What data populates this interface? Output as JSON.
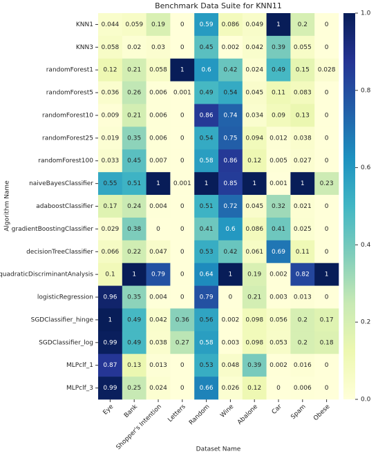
{
  "chart_data": {
    "type": "heatmap",
    "title": "Benchmark Data Suite for KNN11",
    "x_label": "Dataset Name",
    "y_label": "Algorithm Name",
    "columns": [
      "Eye",
      "Bank",
      "Shopper's Intention",
      "Letters",
      "Random",
      "Wine",
      "Abalone",
      "Car",
      "Spam",
      "Obese"
    ],
    "rows": [
      "KNN1",
      "KNN3",
      "randomForest1",
      "randomForest5",
      "randomForest10",
      "randomForest25",
      "randomForest100",
      "naiveBayesClassifier",
      "adaboostClassifier",
      "gradientBoostingClassifier",
      "decisionTreeClassifier",
      "quadraticDiscriminantAnalysis",
      "logisticRegression",
      "SGDClassifier_hinge",
      "SGDClassifier_log",
      "MLPclf_1",
      "MLPclf_3"
    ],
    "values": [
      [
        0.044,
        0.059,
        0.19,
        0,
        0.59,
        0.086,
        0.049,
        1,
        0.2,
        0
      ],
      [
        0.058,
        0.02,
        0.03,
        0,
        0.45,
        0.002,
        0.042,
        0.39,
        0.055,
        0
      ],
      [
        0.12,
        0.21,
        0.058,
        1,
        0.6,
        0.42,
        0.024,
        0.49,
        0.15,
        0.028
      ],
      [
        0.036,
        0.26,
        0.006,
        0.001,
        0.49,
        0.54,
        0.045,
        0.11,
        0.083,
        0
      ],
      [
        0.009,
        0.21,
        0.006,
        0,
        0.86,
        0.74,
        0.034,
        0.09,
        0.13,
        0
      ],
      [
        0.019,
        0.35,
        0.006,
        0,
        0.54,
        0.75,
        0.094,
        0.012,
        0.038,
        0
      ],
      [
        0.033,
        0.45,
        0.007,
        0,
        0.58,
        0.86,
        0.12,
        0.005,
        0.027,
        0
      ],
      [
        0.55,
        0.51,
        1,
        0.001,
        1,
        0.85,
        1,
        0.001,
        1,
        0.23
      ],
      [
        0.17,
        0.24,
        0.004,
        0,
        0.51,
        0.72,
        0.045,
        0.32,
        0.021,
        0
      ],
      [
        0.029,
        0.38,
        0,
        0,
        0.41,
        0.6,
        0.086,
        0.41,
        0.025,
        0
      ],
      [
        0.066,
        0.22,
        0.047,
        0,
        0.53,
        0.42,
        0.061,
        0.69,
        0.11,
        0
      ],
      [
        0.1,
        1,
        0.79,
        0,
        0.64,
        1,
        0.19,
        0.002,
        0.82,
        1
      ],
      [
        0.96,
        0.35,
        0.004,
        0,
        0.79,
        0,
        0.21,
        0.003,
        0.013,
        0
      ],
      [
        1,
        0.49,
        0.042,
        0.36,
        0.56,
        0.002,
        0.098,
        0.056,
        0.2,
        0.17
      ],
      [
        0.99,
        0.49,
        0.038,
        0.27,
        0.58,
        0.003,
        0.098,
        0.053,
        0.2,
        0.18
      ],
      [
        0.87,
        0.13,
        0.013,
        0,
        0.53,
        0.048,
        0.39,
        0.002,
        0.016,
        0
      ],
      [
        0.99,
        0.25,
        0.024,
        0,
        0.66,
        0.026,
        0.12,
        0,
        0.006,
        0
      ]
    ],
    "colormap": [
      "#ffffd9",
      "#edf8b1",
      "#c7e9b4",
      "#7fcdbb",
      "#41b6c4",
      "#1d91c0",
      "#225ea8",
      "#253494",
      "#081d58"
    ],
    "zlim": [
      0,
      1
    ],
    "zticks": [
      {
        "value": 0,
        "label": "0.0"
      },
      0.2,
      0.4,
      0.6,
      0.8,
      {
        "value": 1,
        "label": "1.0"
      }
    ]
  }
}
